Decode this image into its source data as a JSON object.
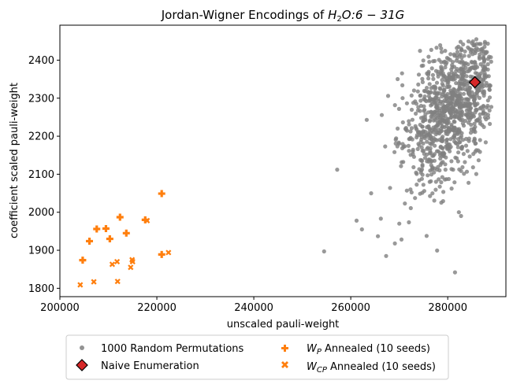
{
  "chart_data": {
    "type": "scatter",
    "title": "Jordan-Wigner Encodings of H₂O:6−31G",
    "title_parts": {
      "prefix": "Jordan-Wigner Encodings of ",
      "mol": "H",
      "sub": "2",
      "rest": "O:6 − 31G"
    },
    "xlabel": "unscaled pauli-weight",
    "ylabel": "coefficient scaled pauli-weight",
    "xlim": [
      200000,
      292000
    ],
    "ylim": [
      1778,
      2492
    ],
    "xticks": [
      200000,
      220000,
      240000,
      260000,
      280000
    ],
    "xtick_labels": [
      "200000",
      "220000",
      "240000",
      "260000",
      "280000"
    ],
    "yticks": [
      1800,
      1900,
      2000,
      2100,
      2200,
      2300,
      2400
    ],
    "ytick_labels": [
      "1800",
      "1900",
      "2000",
      "2100",
      "2200",
      "2300",
      "2400"
    ],
    "grid": false,
    "legend_position": "below",
    "colors": {
      "random": "#808080",
      "naive": "#d62728",
      "annealed": "#ff7f0e"
    },
    "series": [
      {
        "name": "1000 Random Permutations",
        "marker": "circle",
        "count": 1000,
        "cluster": {
          "x_mean": 280500,
          "x_std": 4700,
          "y_mean": 2265,
          "y_std": 95,
          "corr": 0.45
        },
        "points": [
          [
            254500,
            1897
          ],
          [
            257200,
            2112
          ],
          [
            261200,
            1978
          ],
          [
            262300,
            1955
          ],
          [
            263300,
            2243
          ],
          [
            264200,
            2050
          ],
          [
            265600,
            1937
          ],
          [
            266200,
            1983
          ],
          [
            267300,
            1885
          ],
          [
            267700,
            2306
          ],
          [
            268100,
            2064
          ],
          [
            269100,
            1918
          ],
          [
            270000,
            1970
          ],
          [
            276600,
            2427
          ],
          [
            281500,
            1842
          ],
          [
            282300,
            2000
          ],
          [
            285900,
            2455
          ],
          [
            287600,
            2435
          ]
        ]
      },
      {
        "name": "Naive Enumeration",
        "marker": "diamond",
        "points": [
          [
            285600,
            2342
          ]
        ]
      },
      {
        "name": "W_P Annealed (10 seeds)",
        "label_parts": {
          "base": "W",
          "sub": "P",
          "rest": " Annealed (10 seeds)"
        },
        "marker": "plus",
        "points": [
          [
            204700,
            1874
          ],
          [
            206100,
            1924
          ],
          [
            207600,
            1956
          ],
          [
            209500,
            1957
          ],
          [
            210300,
            1930
          ],
          [
            212400,
            1987
          ],
          [
            213700,
            1945
          ],
          [
            217600,
            1980
          ],
          [
            221000,
            2049
          ],
          [
            221000,
            1889
          ]
        ]
      },
      {
        "name": "W_CP Annealed (10 seeds)",
        "label_parts": {
          "base": "W",
          "sub": "CP",
          "rest": " Annealed (10 seeds)"
        },
        "marker": "x",
        "points": [
          [
            204200,
            1809
          ],
          [
            207000,
            1817
          ],
          [
            210800,
            1863
          ],
          [
            211800,
            1870
          ],
          [
            211900,
            1818
          ],
          [
            214600,
            1855
          ],
          [
            214900,
            1875
          ],
          [
            218000,
            1978
          ],
          [
            222400,
            1894
          ],
          [
            215000,
            1870
          ]
        ]
      }
    ]
  }
}
